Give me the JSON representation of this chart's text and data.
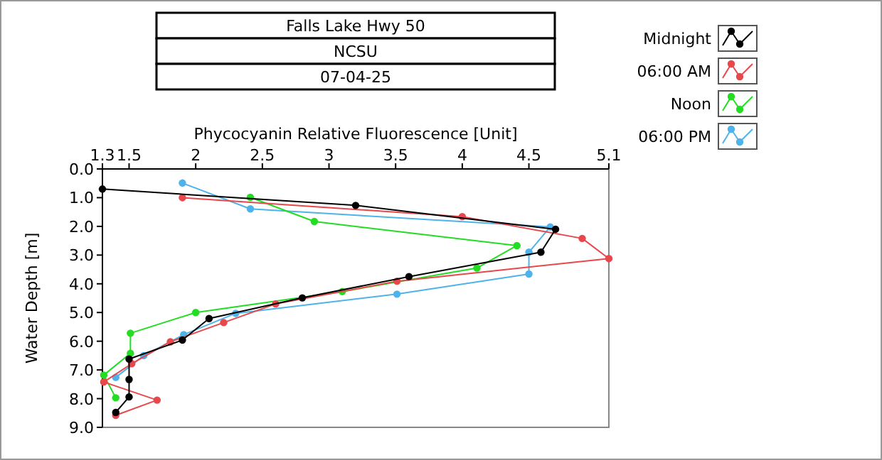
{
  "chart_data": {
    "type": "line",
    "title": "Falls Lake Hwy 50",
    "subtitle": "NCSU",
    "annotations": [
      "07-04-25"
    ],
    "xlabel": "Phycocyanin Relative Fluorescence [Unit]",
    "ylabel": "Water Depth [m]",
    "xlim": [
      1.3,
      5.1
    ],
    "xticks": [
      1.3,
      1.5,
      2,
      2.5,
      3,
      3.5,
      4,
      4.5,
      5.1
    ],
    "ylim": [
      9,
      0
    ],
    "yticks": [
      {
        "value": 0,
        "label": "0.0"
      },
      {
        "value": 1,
        "label": "1.0"
      },
      {
        "value": 2,
        "label": "2.0"
      },
      {
        "value": 3,
        "label": "3.0"
      },
      {
        "value": 4,
        "label": "4.0"
      },
      {
        "value": 5,
        "label": "5.0"
      },
      {
        "value": 6,
        "label": "6.0"
      },
      {
        "value": 7,
        "label": "7.0"
      },
      {
        "value": 8,
        "label": "8.0"
      },
      {
        "value": 9,
        "label": "9.0"
      }
    ],
    "grid": false,
    "legend": "top right",
    "marker": "circle",
    "line_style": "solid",
    "series": [
      {
        "name": "Midnight",
        "color": "#000000",
        "x": [
          1.3,
          3.2,
          4.7,
          4.59,
          3.6,
          2.8,
          2.1,
          1.9,
          1.5,
          1.5,
          1.5,
          1.4
        ],
        "values": [
          0.7,
          1.27,
          2.1,
          2.9,
          3.75,
          4.49,
          5.21,
          5.96,
          6.62,
          7.33,
          7.94,
          8.48
        ]
      },
      {
        "name": "06:00 AM",
        "color": "#e8474b",
        "x": [
          1.9,
          4.0,
          4.9,
          5.1,
          3.51,
          2.6,
          2.21,
          1.81,
          1.52,
          1.31,
          1.71,
          1.4
        ],
        "values": [
          1.0,
          1.66,
          2.42,
          3.12,
          3.91,
          4.7,
          5.35,
          6.02,
          6.78,
          7.42,
          8.05,
          8.58
        ]
      },
      {
        "name": "Noon",
        "color": "#22dd22",
        "x": [
          2.41,
          2.89,
          4.41,
          4.11,
          3.1,
          2.0,
          1.51,
          1.51,
          1.31,
          1.4
        ],
        "values": [
          0.99,
          1.83,
          2.67,
          3.45,
          4.27,
          5.0,
          5.72,
          6.42,
          7.18,
          7.97
        ]
      },
      {
        "name": "06:00 PM",
        "color": "#4db3ea",
        "x": [
          1.9,
          2.41,
          4.66,
          4.5,
          4.5,
          3.51,
          2.3,
          1.91,
          1.61,
          1.4
        ],
        "values": [
          0.49,
          1.39,
          2.02,
          2.9,
          3.66,
          4.36,
          5.03,
          5.77,
          6.5,
          7.26
        ]
      }
    ]
  }
}
